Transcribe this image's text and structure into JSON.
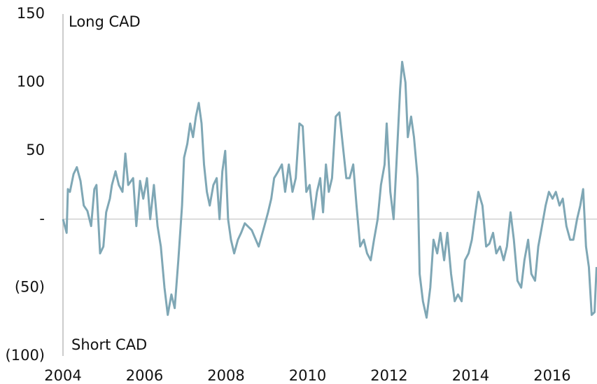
{
  "chart_data": {
    "type": "line",
    "annotations": [
      "Long CAD",
      "Short CAD"
    ],
    "x": [
      2004.0,
      2004.09,
      2004.12,
      2004.17,
      2004.26,
      2004.34,
      2004.43,
      2004.51,
      2004.6,
      2004.69,
      2004.77,
      2004.82,
      2004.91,
      2004.99,
      2005.06,
      2005.15,
      2005.2,
      2005.29,
      2005.37,
      2005.46,
      2005.53,
      2005.6,
      2005.72,
      2005.8,
      2005.89,
      2005.97,
      2006.06,
      2006.14,
      2006.23,
      2006.32,
      2006.4,
      2006.49,
      2006.57,
      2006.66,
      2006.74,
      2006.83,
      2006.92,
      2006.97,
      2007.05,
      2007.12,
      2007.19,
      2007.26,
      2007.33,
      2007.4,
      2007.46,
      2007.53,
      2007.6,
      2007.69,
      2007.77,
      2007.84,
      2007.91,
      2007.98,
      2008.05,
      2008.12,
      2008.2,
      2008.29,
      2008.37,
      2008.46,
      2008.63,
      2008.8,
      2008.94,
      2009.03,
      2009.11,
      2009.18,
      2009.28,
      2009.37,
      2009.45,
      2009.54,
      2009.63,
      2009.71,
      2009.8,
      2009.88,
      2009.97,
      2010.05,
      2010.14,
      2010.23,
      2010.31,
      2010.38,
      2010.45,
      2010.52,
      2010.6,
      2010.69,
      2010.78,
      2010.86,
      2010.95,
      2011.03,
      2011.12,
      2011.2,
      2011.29,
      2011.38,
      2011.46,
      2011.55,
      2011.63,
      2011.72,
      2011.8,
      2011.89,
      2011.94,
      2012.03,
      2012.11,
      2012.18,
      2012.27,
      2012.32,
      2012.4,
      2012.46,
      2012.54,
      2012.61,
      2012.7,
      2012.75,
      2012.83,
      2012.92,
      2013.01,
      2013.09,
      2013.18,
      2013.26,
      2013.35,
      2013.43,
      2013.52,
      2013.61,
      2013.69,
      2013.78,
      2013.86,
      2013.95,
      2014.03,
      2014.12,
      2014.19,
      2014.29,
      2014.38,
      2014.46,
      2014.55,
      2014.63,
      2014.72,
      2014.81,
      2014.89,
      2014.98,
      2015.06,
      2015.15,
      2015.24,
      2015.32,
      2015.41,
      2015.49,
      2015.58,
      2015.66,
      2015.75,
      2015.84,
      2015.92,
      2016.01,
      2016.09,
      2016.18,
      2016.26,
      2016.35,
      2016.44,
      2016.52,
      2016.61,
      2016.69,
      2016.76,
      2016.83,
      2016.9,
      2016.97,
      2017.04,
      2017.09
    ],
    "values": [
      0,
      -10,
      22,
      20,
      33,
      38,
      28,
      10,
      6,
      -5,
      22,
      25,
      -25,
      -20,
      5,
      15,
      25,
      35,
      25,
      20,
      48,
      25,
      30,
      -5,
      28,
      15,
      30,
      0,
      25,
      -5,
      -20,
      -50,
      -70,
      -55,
      -65,
      -30,
      10,
      45,
      55,
      70,
      60,
      75,
      85,
      70,
      40,
      20,
      10,
      25,
      30,
      0,
      35,
      50,
      0,
      -15,
      -25,
      -15,
      -10,
      -3,
      -8,
      -20,
      -5,
      5,
      15,
      30,
      35,
      40,
      20,
      40,
      20,
      30,
      70,
      68,
      20,
      25,
      0,
      20,
      30,
      5,
      40,
      20,
      30,
      75,
      78,
      55,
      30,
      30,
      40,
      10,
      -20,
      -15,
      -25,
      -30,
      -15,
      0,
      25,
      40,
      70,
      20,
      0,
      40,
      95,
      115,
      100,
      60,
      75,
      60,
      30,
      -40,
      -60,
      -72,
      -50,
      -15,
      -25,
      -10,
      -30,
      -10,
      -40,
      -60,
      -55,
      -60,
      -30,
      -25,
      -15,
      5,
      20,
      10,
      -20,
      -18,
      -10,
      -25,
      -20,
      -30,
      -20,
      5,
      -15,
      -45,
      -50,
      -30,
      -15,
      -40,
      -45,
      -20,
      -5,
      10,
      20,
      15,
      20,
      10,
      15,
      -5,
      -15,
      -15,
      0,
      10,
      22,
      -20,
      -35,
      -70,
      -68,
      -35
    ],
    "color": "#7fa7b5",
    "xlim": [
      2004,
      2017.1
    ],
    "xticks": [
      2004,
      2006,
      2008,
      2010,
      2012,
      2014,
      2016
    ],
    "ylim": [
      -100,
      150
    ],
    "yticks": [
      150,
      100,
      50,
      {
        "value": 0,
        "label": "-"
      },
      {
        "value": -50,
        "label": "(50)"
      },
      {
        "value": -100,
        "label": "(100)"
      }
    ],
    "zero_line": true
  }
}
